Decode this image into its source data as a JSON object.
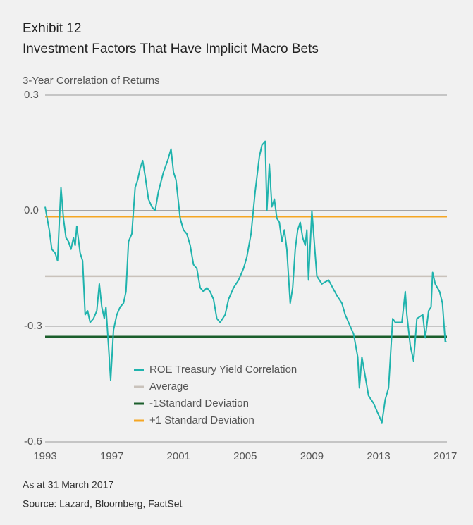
{
  "chart_data": {
    "type": "line",
    "header": "Exhibit 12",
    "title": "Investment Factors That Have Implicit Macro Bets",
    "y_axis_label": "3-Year Correlation of Returns",
    "note": "As at 31 March 2017",
    "source": "Source: Lazard, Bloomberg, FactSet",
    "xlim": [
      1993,
      2017.1
    ],
    "xticks": [
      1993,
      1997,
      2001,
      2005,
      2009,
      2013,
      2017
    ],
    "ylim": [
      -0.6,
      0.3
    ],
    "yticks": [
      {
        "value": -0.6,
        "label": "-0.6"
      },
      {
        "value": -0.3,
        "label": "-0.3"
      },
      {
        "value": 0,
        "label": "0.0"
      },
      {
        "value": 0.3,
        "label": "0.3"
      }
    ],
    "grid": true,
    "series": [
      {
        "name": "ROE Treasury Yield Correlation",
        "color": "#1fb3ad",
        "x": [
          1993.0,
          1993.25,
          1993.4,
          1993.6,
          1993.75,
          1993.85,
          1993.95,
          1994.1,
          1994.25,
          1994.4,
          1994.55,
          1994.7,
          1994.8,
          1994.9,
          1995.1,
          1995.25,
          1995.4,
          1995.55,
          1995.7,
          1995.9,
          1996.1,
          1996.25,
          1996.4,
          1996.55,
          1996.65,
          1996.8,
          1996.93,
          1997.1,
          1997.3,
          1997.5,
          1997.7,
          1997.85,
          1998.0,
          1998.2,
          1998.4,
          1998.55,
          1998.7,
          1998.85,
          1999.0,
          1999.2,
          1999.4,
          1999.6,
          1999.8,
          2000.1,
          2000.35,
          2000.55,
          2000.7,
          2000.85,
          2001.1,
          2001.3,
          2001.5,
          2001.7,
          2001.9,
          2002.1,
          2002.3,
          2002.5,
          2002.7,
          2002.9,
          2003.1,
          2003.3,
          2003.5,
          2003.8,
          2004.0,
          2004.3,
          2004.6,
          2004.9,
          2005.1,
          2005.35,
          2005.6,
          2005.85,
          2006.0,
          2006.2,
          2006.3,
          2006.45,
          2006.6,
          2006.75,
          2006.9,
          2007.05,
          2007.2,
          2007.35,
          2007.5,
          2007.7,
          2007.85,
          2008.0,
          2008.15,
          2008.3,
          2008.45,
          2008.6,
          2008.7,
          2008.8,
          2009.0,
          2009.3,
          2009.6,
          2010.0,
          2010.5,
          2010.8,
          2011.0,
          2011.3,
          2011.5,
          2011.75,
          2011.85,
          2012.0,
          2012.4,
          2012.7,
          2012.9,
          2013.2,
          2013.4,
          2013.6,
          2013.85,
          2014.0,
          2014.4,
          2014.6,
          2014.7,
          2014.9,
          2015.1,
          2015.3,
          2015.65,
          2015.8,
          2016.0,
          2016.15,
          2016.24,
          2016.4,
          2016.66,
          2016.83,
          2017.0,
          2017.08
        ],
        "values": [
          0.01,
          -0.05,
          -0.1,
          -0.11,
          -0.13,
          -0.03,
          0.06,
          -0.02,
          -0.07,
          -0.08,
          -0.1,
          -0.07,
          -0.09,
          -0.04,
          -0.11,
          -0.13,
          -0.27,
          -0.26,
          -0.29,
          -0.28,
          -0.26,
          -0.19,
          -0.25,
          -0.28,
          -0.25,
          -0.35,
          -0.44,
          -0.31,
          -0.27,
          -0.25,
          -0.24,
          -0.21,
          -0.08,
          -0.06,
          0.06,
          0.08,
          0.11,
          0.13,
          0.09,
          0.03,
          0.01,
          0.0,
          0.05,
          0.1,
          0.13,
          0.16,
          0.1,
          0.08,
          -0.02,
          -0.05,
          -0.06,
          -0.09,
          -0.14,
          -0.15,
          -0.2,
          -0.21,
          -0.2,
          -0.21,
          -0.23,
          -0.28,
          -0.29,
          -0.27,
          -0.23,
          -0.2,
          -0.18,
          -0.15,
          -0.12,
          -0.06,
          0.05,
          0.14,
          0.17,
          0.18,
          0.0,
          0.12,
          0.01,
          0.03,
          -0.02,
          -0.03,
          -0.08,
          -0.05,
          -0.1,
          -0.24,
          -0.2,
          -0.1,
          -0.05,
          -0.03,
          -0.07,
          -0.09,
          -0.05,
          -0.18,
          0.0,
          -0.17,
          -0.19,
          -0.18,
          -0.22,
          -0.24,
          -0.27,
          -0.3,
          -0.32,
          -0.38,
          -0.46,
          -0.38,
          -0.48,
          -0.5,
          -0.52,
          -0.55,
          -0.49,
          -0.46,
          -0.28,
          -0.29,
          -0.29,
          -0.21,
          -0.27,
          -0.35,
          -0.39,
          -0.28,
          -0.27,
          -0.33,
          -0.26,
          -0.25,
          -0.16,
          -0.19,
          -0.21,
          -0.24,
          -0.34,
          -0.34
        ]
      }
    ],
    "reference_lines": [
      {
        "name": "Average",
        "value": -0.17,
        "color": "#c9c2bb"
      },
      {
        "name": "-1Standard Deviation",
        "value": -0.327,
        "color": "#1b5e2c"
      },
      {
        "name": "+1 Standard Deviation",
        "value": -0.015,
        "color": "#f5a623"
      }
    ]
  }
}
